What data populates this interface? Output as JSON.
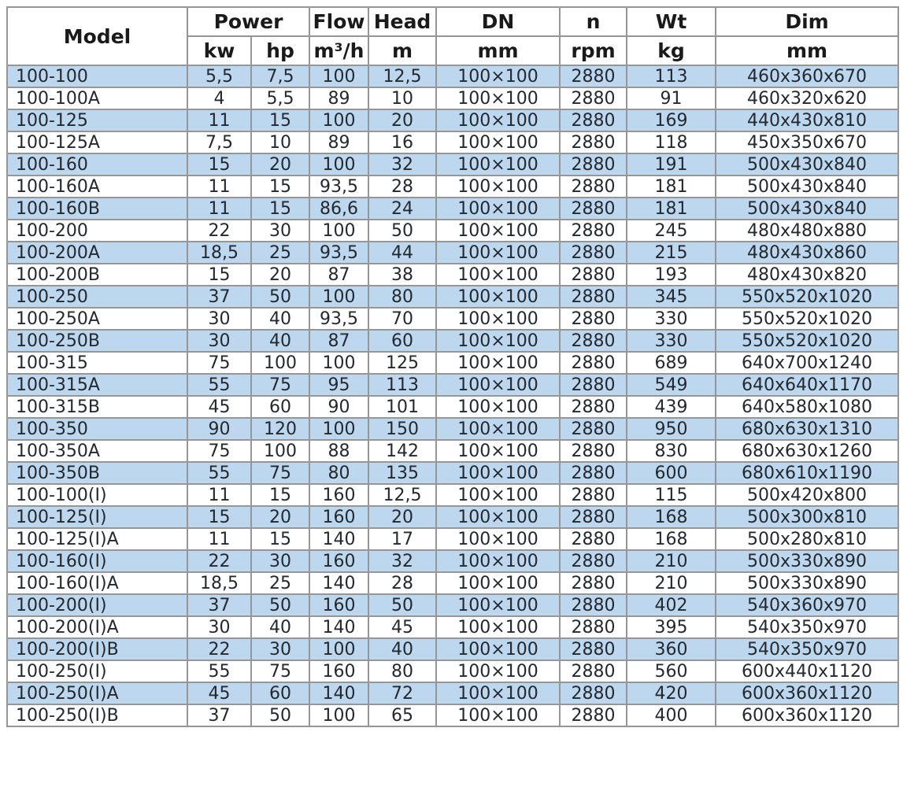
{
  "table": {
    "colors": {
      "stripe": "#bdd7ee",
      "border": "#969696",
      "outer_border": "#7f7f7f",
      "text": "#24292f"
    },
    "header": {
      "model": "Model",
      "power": "Power",
      "power_kw": "kw",
      "power_hp": "hp",
      "flow": "Flow",
      "flow_unit": "m³/h",
      "head": "Head",
      "head_unit": "m",
      "dn": "DN",
      "dn_unit": "mm",
      "n": "n",
      "n_unit": "rpm",
      "wt": "Wt",
      "wt_unit": "kg",
      "dim": "Dim",
      "dim_unit": "mm"
    },
    "columns": [
      "model",
      "kw",
      "hp",
      "flow",
      "head",
      "dn",
      "rpm",
      "wt",
      "dim"
    ],
    "rows": [
      {
        "model": "100-100",
        "kw": "5,5",
        "hp": "7,5",
        "flow": "100",
        "head": "12,5",
        "dn": "100×100",
        "rpm": "2880",
        "wt": "113",
        "dim": "460x360x670"
      },
      {
        "model": "100-100A",
        "kw": "4",
        "hp": "5,5",
        "flow": "89",
        "head": "10",
        "dn": "100×100",
        "rpm": "2880",
        "wt": "91",
        "dim": "460x320x620"
      },
      {
        "model": "100-125",
        "kw": "11",
        "hp": "15",
        "flow": "100",
        "head": "20",
        "dn": "100×100",
        "rpm": "2880",
        "wt": "169",
        "dim": "440x430x810"
      },
      {
        "model": "100-125A",
        "kw": "7,5",
        "hp": "10",
        "flow": "89",
        "head": "16",
        "dn": "100×100",
        "rpm": "2880",
        "wt": "118",
        "dim": "450x350x670"
      },
      {
        "model": "100-160",
        "kw": "15",
        "hp": "20",
        "flow": "100",
        "head": "32",
        "dn": "100×100",
        "rpm": "2880",
        "wt": "191",
        "dim": "500x430x840"
      },
      {
        "model": "100-160A",
        "kw": "11",
        "hp": "15",
        "flow": "93,5",
        "head": "28",
        "dn": "100×100",
        "rpm": "2880",
        "wt": "181",
        "dim": "500x430x840"
      },
      {
        "model": "100-160B",
        "kw": "11",
        "hp": "15",
        "flow": "86,6",
        "head": "24",
        "dn": "100×100",
        "rpm": "2880",
        "wt": "181",
        "dim": "500x430x840"
      },
      {
        "model": "100-200",
        "kw": "22",
        "hp": "30",
        "flow": "100",
        "head": "50",
        "dn": "100×100",
        "rpm": "2880",
        "wt": "245",
        "dim": "480x480x880"
      },
      {
        "model": "100-200A",
        "kw": "18,5",
        "hp": "25",
        "flow": "93,5",
        "head": "44",
        "dn": "100×100",
        "rpm": "2880",
        "wt": "215",
        "dim": "480x430x860"
      },
      {
        "model": "100-200B",
        "kw": "15",
        "hp": "20",
        "flow": "87",
        "head": "38",
        "dn": "100×100",
        "rpm": "2880",
        "wt": "193",
        "dim": "480x430x820"
      },
      {
        "model": "100-250",
        "kw": "37",
        "hp": "50",
        "flow": "100",
        "head": "80",
        "dn": "100×100",
        "rpm": "2880",
        "wt": "345",
        "dim": "550x520x1020"
      },
      {
        "model": "100-250A",
        "kw": "30",
        "hp": "40",
        "flow": "93,5",
        "head": "70",
        "dn": "100×100",
        "rpm": "2880",
        "wt": "330",
        "dim": "550x520x1020"
      },
      {
        "model": "100-250B",
        "kw": "30",
        "hp": "40",
        "flow": "87",
        "head": "60",
        "dn": "100×100",
        "rpm": "2880",
        "wt": "330",
        "dim": "550x520x1020"
      },
      {
        "model": "100-315",
        "kw": "75",
        "hp": "100",
        "flow": "100",
        "head": "125",
        "dn": "100×100",
        "rpm": "2880",
        "wt": "689",
        "dim": "640x700x1240"
      },
      {
        "model": "100-315A",
        "kw": "55",
        "hp": "75",
        "flow": "95",
        "head": "113",
        "dn": "100×100",
        "rpm": "2880",
        "wt": "549",
        "dim": "640x640x1170"
      },
      {
        "model": "100-315B",
        "kw": "45",
        "hp": "60",
        "flow": "90",
        "head": "101",
        "dn": "100×100",
        "rpm": "2880",
        "wt": "439",
        "dim": "640x580x1080"
      },
      {
        "model": "100-350",
        "kw": "90",
        "hp": "120",
        "flow": "100",
        "head": "150",
        "dn": "100×100",
        "rpm": "2880",
        "wt": "950",
        "dim": "680x630x1310"
      },
      {
        "model": "100-350A",
        "kw": "75",
        "hp": "100",
        "flow": "88",
        "head": "142",
        "dn": "100×100",
        "rpm": "2880",
        "wt": "830",
        "dim": "680x630x1260"
      },
      {
        "model": "100-350B",
        "kw": "55",
        "hp": "75",
        "flow": "80",
        "head": "135",
        "dn": "100×100",
        "rpm": "2880",
        "wt": "600",
        "dim": "680x610x1190"
      },
      {
        "model": "100-100(I)",
        "kw": "11",
        "hp": "15",
        "flow": "160",
        "head": "12,5",
        "dn": "100×100",
        "rpm": "2880",
        "wt": "115",
        "dim": "500x420x800"
      },
      {
        "model": "100-125(I)",
        "kw": "15",
        "hp": "20",
        "flow": "160",
        "head": "20",
        "dn": "100×100",
        "rpm": "2880",
        "wt": "168",
        "dim": "500x300x810"
      },
      {
        "model": "100-125(I)A",
        "kw": "11",
        "hp": "15",
        "flow": "140",
        "head": "17",
        "dn": "100×100",
        "rpm": "2880",
        "wt": "168",
        "dim": "500x280x810"
      },
      {
        "model": "100-160(I)",
        "kw": "22",
        "hp": "30",
        "flow": "160",
        "head": "32",
        "dn": "100×100",
        "rpm": "2880",
        "wt": "210",
        "dim": "500x330x890"
      },
      {
        "model": "100-160(I)A",
        "kw": "18,5",
        "hp": "25",
        "flow": "140",
        "head": "28",
        "dn": "100×100",
        "rpm": "2880",
        "wt": "210",
        "dim": "500x330x890"
      },
      {
        "model": "100-200(I)",
        "kw": "37",
        "hp": "50",
        "flow": "160",
        "head": "50",
        "dn": "100×100",
        "rpm": "2880",
        "wt": "402",
        "dim": "540x360x970"
      },
      {
        "model": "100-200(I)A",
        "kw": "30",
        "hp": "40",
        "flow": "140",
        "head": "45",
        "dn": "100×100",
        "rpm": "2880",
        "wt": "395",
        "dim": "540x350x970"
      },
      {
        "model": "100-200(I)B",
        "kw": "22",
        "hp": "30",
        "flow": "100",
        "head": "40",
        "dn": "100×100",
        "rpm": "2880",
        "wt": "360",
        "dim": "540x350x970"
      },
      {
        "model": "100-250(I)",
        "kw": "55",
        "hp": "75",
        "flow": "160",
        "head": "80",
        "dn": "100×100",
        "rpm": "2880",
        "wt": "560",
        "dim": "600x440x1120"
      },
      {
        "model": "100-250(I)A",
        "kw": "45",
        "hp": "60",
        "flow": "140",
        "head": "72",
        "dn": "100×100",
        "rpm": "2880",
        "wt": "420",
        "dim": "600x360x1120"
      },
      {
        "model": "100-250(I)B",
        "kw": "37",
        "hp": "50",
        "flow": "100",
        "head": "65",
        "dn": "100×100",
        "rpm": "2880",
        "wt": "400",
        "dim": "600x360x1120"
      }
    ]
  }
}
